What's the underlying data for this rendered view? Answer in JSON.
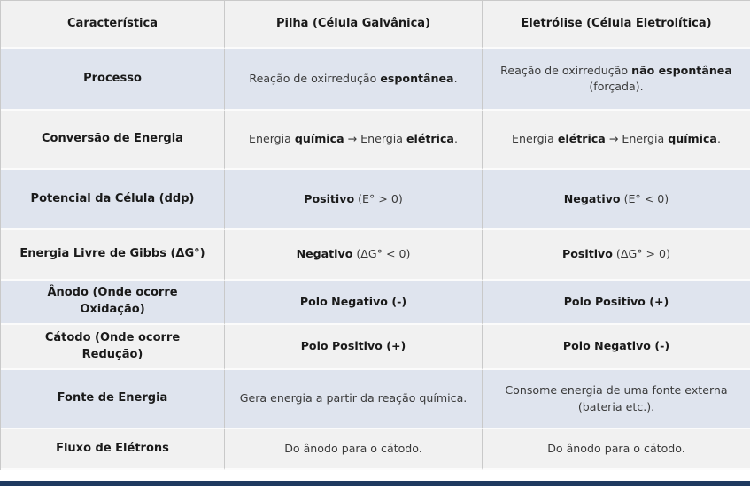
{
  "table": {
    "columns": [
      "Característica",
      "Pilha (Célula Galvânica)",
      "Eletrólise (Célula Eletrolítica)"
    ],
    "rows": [
      {
        "label": "Processo",
        "pilha": "Reação de oxirredução **espontânea**.",
        "eletrolise": "Reação de oxirredução **não espontânea** (forçada)."
      },
      {
        "label": "Conversão de Energia",
        "pilha": "Energia **química** → Energia **elétrica**.",
        "eletrolise": "Energia **elétrica** → Energia **química**."
      },
      {
        "label": "Potencial da Célula (ddp)",
        "pilha": "**Positivo** (E° > 0)",
        "eletrolise": "**Negativo** (E° < 0)"
      },
      {
        "label": "Energia Livre de Gibbs (ΔG°)",
        "pilha": "**Negativo** (ΔG° < 0)",
        "eletrolise": "**Positivo** (ΔG° > 0)"
      },
      {
        "label": "Ânodo (Onde ocorre Oxidação)",
        "pilha": "**Polo Negativo (-)**",
        "eletrolise": "**Polo Positivo (+)**"
      },
      {
        "label": "Cátodo (Onde ocorre Redução)",
        "pilha": "**Polo Positivo (+)**",
        "eletrolise": "**Polo Negativo (-)**"
      },
      {
        "label": "Fonte de Energia",
        "pilha": "Gera energia a partir da reação química.",
        "eletrolise": "Consome energia de uma fonte externa (bateria etc.)."
      },
      {
        "label": "Fluxo de Elétrons",
        "pilha": "Do ânodo para o cátodo.",
        "eletrolise": "Do ânodo para o cátodo."
      }
    ]
  },
  "colors": {
    "row_stripe_blue": "#dfe4ee",
    "row_stripe_gray": "#f1f1f1",
    "border_gray": "#c9c9c9",
    "bottom_bar_navy": "#1f3a60"
  }
}
